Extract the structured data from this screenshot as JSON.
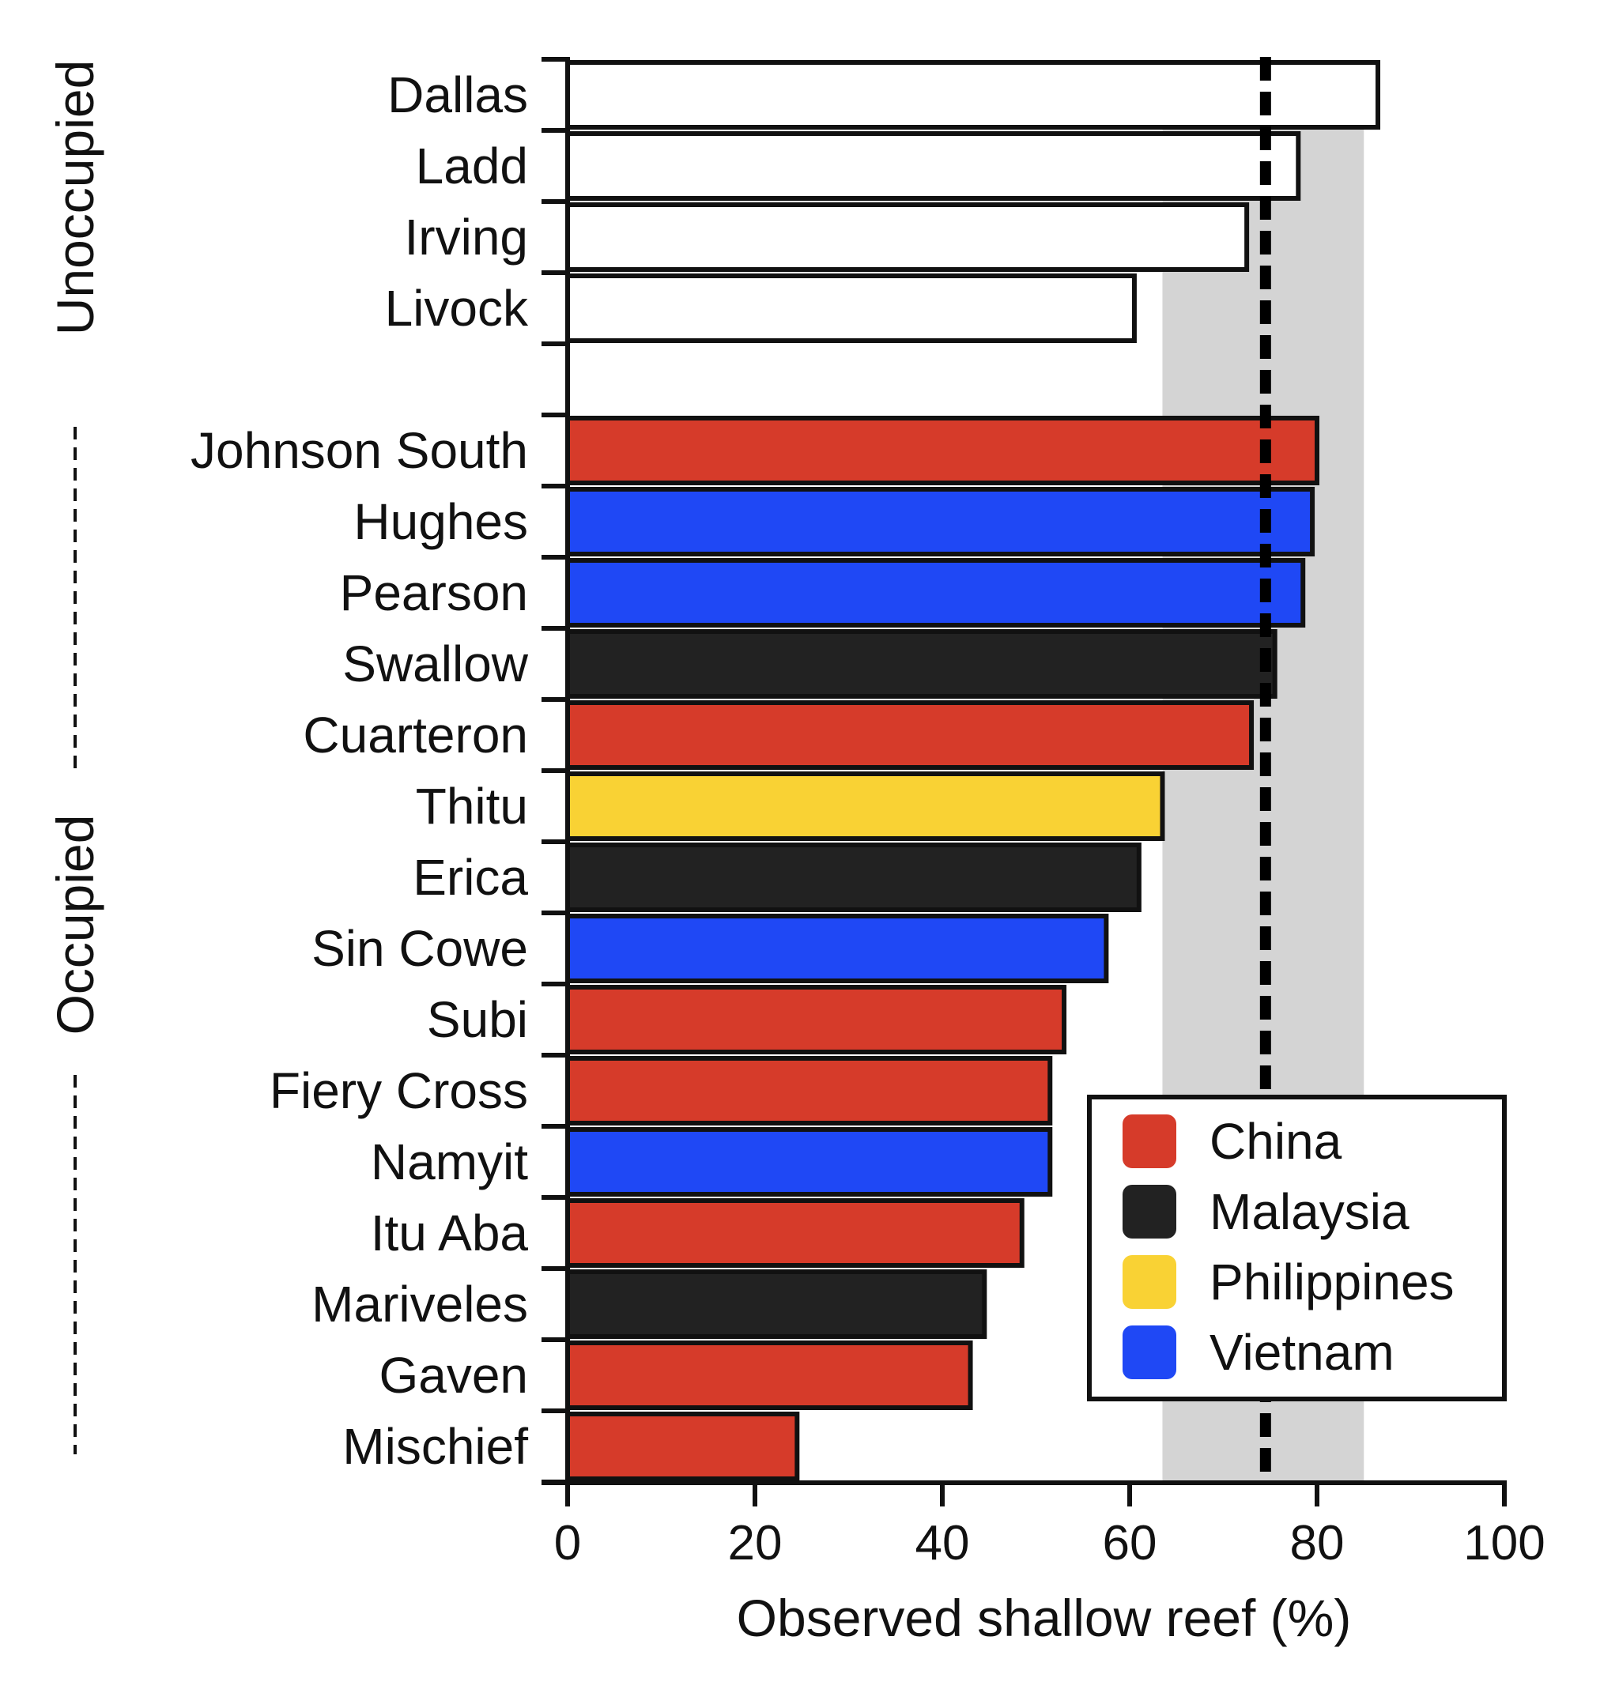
{
  "chart_data": {
    "type": "bar",
    "orientation": "horizontal",
    "xlabel": "Observed shallow reef (%)",
    "xlim": [
      0,
      100
    ],
    "xticks": [
      "0",
      "20",
      "40",
      "60",
      "80",
      "100"
    ],
    "grid": false,
    "groups": [
      {
        "label": "Unoccupied",
        "categories": [
          "Dallas",
          "Ladd",
          "Irving",
          "Livock"
        ]
      },
      {
        "label": "Occupied",
        "categories": [
          "Johnson South",
          "Hughes",
          "Pearson",
          "Swallow",
          "Cuarteron",
          "Thitu",
          "Erica",
          "Sin Cowe",
          "Subi",
          "Fiery Cross",
          "Namyit",
          "Itu Aba",
          "Mariveles",
          "Gaven",
          "Mischief"
        ]
      }
    ],
    "bars": [
      {
        "category": "Dallas",
        "value": 86.5,
        "country": ""
      },
      {
        "category": "Ladd",
        "value": 78,
        "country": ""
      },
      {
        "category": "Irving",
        "value": 72.5,
        "country": ""
      },
      {
        "category": "Livock",
        "value": 60.5,
        "country": ""
      },
      {
        "category": "Johnson South",
        "value": 80,
        "country": "China"
      },
      {
        "category": "Hughes",
        "value": 79.5,
        "country": "Vietnam"
      },
      {
        "category": "Pearson",
        "value": 78.5,
        "country": "Vietnam"
      },
      {
        "category": "Swallow",
        "value": 75.5,
        "country": "Malaysia"
      },
      {
        "category": "Cuarteron",
        "value": 73,
        "country": "China"
      },
      {
        "category": "Thitu",
        "value": 63.5,
        "country": "Philippines"
      },
      {
        "category": "Erica",
        "value": 61,
        "country": "Malaysia"
      },
      {
        "category": "Sin Cowe",
        "value": 57.5,
        "country": "Vietnam"
      },
      {
        "category": "Subi",
        "value": 53,
        "country": "China"
      },
      {
        "category": "Fiery Cross",
        "value": 51.5,
        "country": "China"
      },
      {
        "category": "Namyit",
        "value": 51.5,
        "country": "Vietnam"
      },
      {
        "category": "Itu Aba",
        "value": 48.5,
        "country": "China"
      },
      {
        "category": "Mariveles",
        "value": 44.5,
        "country": "Malaysia"
      },
      {
        "category": "Gaven",
        "value": 43,
        "country": "China"
      },
      {
        "category": "Mischief",
        "value": 24.5,
        "country": "China"
      }
    ],
    "reference_line": {
      "value": 74.5,
      "style": "dashed"
    },
    "reference_band": {
      "range": [
        63.5,
        85
      ]
    },
    "legend": {
      "placement": "bottom-right",
      "entries": [
        {
          "name": "China",
          "color": "#d63b2a"
        },
        {
          "name": "Malaysia",
          "color": "#222222"
        },
        {
          "name": "Philippines",
          "color": "#f9d234"
        },
        {
          "name": "Vietnam",
          "color": "#1f48f5"
        }
      ]
    },
    "colors": {
      "unoccupied": "#ffffff",
      "band": "#d4d4d4"
    }
  }
}
